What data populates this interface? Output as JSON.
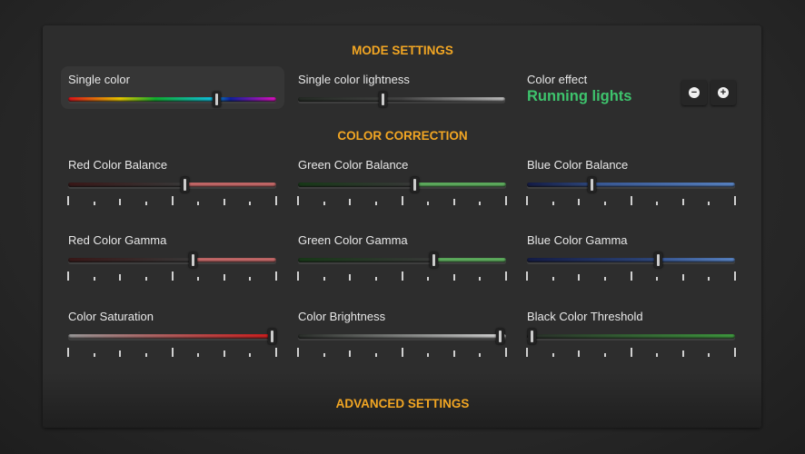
{
  "mode_settings": {
    "heading": "MODE SETTINGS",
    "single_color": {
      "label": "Single color",
      "value": 0.71
    },
    "single_color_lightness": {
      "label": "Single color lightness",
      "value": 0.41
    },
    "color_effect": {
      "label": "Color effect",
      "value": "Running lights",
      "decrease_icon": "minus-circle-icon",
      "increase_icon": "plus-circle-icon"
    }
  },
  "color_correction": {
    "heading": "COLOR CORRECTION",
    "sliders": [
      {
        "label": "Red Color Balance",
        "value": 0.56,
        "color": "#c86a6a"
      },
      {
        "label": "Green Color Balance",
        "value": 0.56,
        "color": "#5fb05f"
      },
      {
        "label": "Blue Color Balance",
        "value": 0.31,
        "color": "#5a86c8"
      },
      {
        "label": "Red Color Gamma",
        "value": 0.6,
        "color": "#c86a6a"
      },
      {
        "label": "Green Color Gamma",
        "value": 0.65,
        "color": "#5fb05f"
      },
      {
        "label": "Blue Color Gamma",
        "value": 0.63,
        "color": "#5a86c8"
      },
      {
        "label": "Color Saturation",
        "value": 0.98,
        "color": "#d01a1a"
      },
      {
        "label": "Color Brightness",
        "value": 0.97,
        "color": "#d8d8d8"
      },
      {
        "label": "Black Color Threshold",
        "value": 0.02,
        "color": "#3f9a3f"
      }
    ]
  },
  "advanced_settings": {
    "heading": "ADVANCED SETTINGS"
  },
  "colors": {
    "accent": "#f2a623",
    "effect": "#3ec46d"
  }
}
